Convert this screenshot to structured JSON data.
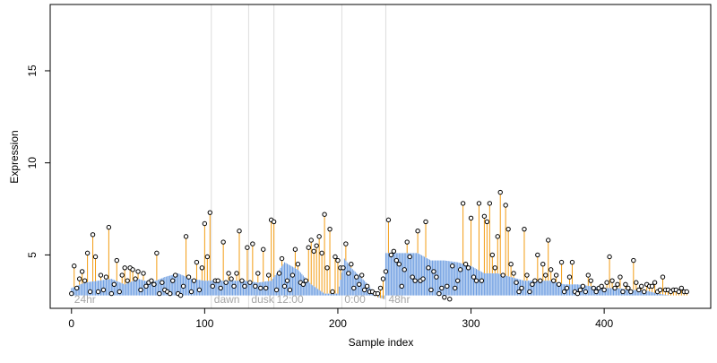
{
  "chart_data": {
    "type": "scatter",
    "title": "",
    "xlabel": "Sample index",
    "ylabel": "Expression",
    "xlim": [
      -16,
      480
    ],
    "ylim": [
      2.1,
      18.6
    ],
    "x_ticks": [
      0,
      100,
      200,
      300,
      400
    ],
    "y_ticks": [
      5,
      10,
      15
    ],
    "grid": false,
    "legend": "none",
    "regions": [
      {
        "label": "24hr",
        "start": 0,
        "end": 105
      },
      {
        "label": "dawn",
        "start": 105,
        "end": 133
      },
      {
        "label": "dusk",
        "start": 133,
        "end": 152
      },
      {
        "label": "12:00",
        "start": 152,
        "end": 203
      },
      {
        "label": "0:00",
        "start": 203,
        "end": 236
      },
      {
        "label": "48hr",
        "start": 236,
        "end": 465
      }
    ],
    "baseline": {
      "name": "",
      "color": "#6a9be0",
      "x": [
        0,
        10,
        20,
        30,
        40,
        50,
        60,
        70,
        80,
        90,
        100,
        110,
        120,
        130,
        140,
        150,
        160,
        170,
        180,
        190,
        200,
        205,
        210,
        220,
        230,
        235,
        236,
        240,
        250,
        260,
        270,
        280,
        290,
        300,
        310,
        320,
        330,
        340,
        350,
        360,
        370,
        380,
        390,
        400,
        410,
        420,
        430,
        440,
        450,
        460
      ],
      "values": [
        3.2,
        3.5,
        3.6,
        3.7,
        3.4,
        3.7,
        3.5,
        3.8,
        4.0,
        3.7,
        3.6,
        3.6,
        3.6,
        3.6,
        3.5,
        3.6,
        4.6,
        4.2,
        3.4,
        2.9,
        2.9,
        4.8,
        4.3,
        3.6,
        2.7,
        2.6,
        5.1,
        5.1,
        5.1,
        5.1,
        4.7,
        4.7,
        4.6,
        4.4,
        4.0,
        4.0,
        3.8,
        3.6,
        3.6,
        3.6,
        3.4,
        3.4,
        3.3,
        3.2,
        3.2,
        3.1,
        3.1,
        2.9,
        2.8,
        2.8
      ]
    },
    "spike_color": "#f39c12",
    "point_style": "open-circle",
    "points_x": [
      0,
      2,
      4,
      6,
      8,
      10,
      12,
      14,
      16,
      18,
      20,
      22,
      24,
      26,
      28,
      30,
      32,
      34,
      36,
      38,
      40,
      42,
      44,
      46,
      48,
      50,
      52,
      54,
      56,
      58,
      60,
      62,
      64,
      66,
      68,
      70,
      72,
      74,
      76,
      78,
      80,
      82,
      84,
      86,
      88,
      90,
      92,
      94,
      96,
      98,
      100,
      102,
      104,
      106,
      108,
      110,
      112,
      114,
      116,
      118,
      120,
      122,
      124,
      126,
      128,
      130,
      132,
      134,
      136,
      138,
      140,
      142,
      144,
      146,
      148,
      150,
      152,
      154,
      156,
      158,
      160,
      162,
      164,
      166,
      168,
      170,
      172,
      174,
      176,
      178,
      180,
      182,
      184,
      186,
      188,
      190,
      192,
      194,
      196,
      198,
      200,
      202,
      204,
      206,
      208,
      210,
      212,
      214,
      216,
      218,
      220,
      222,
      224,
      226,
      228,
      230,
      232,
      234,
      236,
      238,
      240,
      242,
      244,
      246,
      248,
      250,
      252,
      254,
      256,
      258,
      260,
      262,
      264,
      266,
      268,
      270,
      272,
      274,
      276,
      278,
      280,
      282,
      284,
      286,
      288,
      290,
      292,
      294,
      296,
      298,
      300,
      302,
      304,
      306,
      308,
      310,
      312,
      314,
      316,
      318,
      320,
      322,
      324,
      326,
      328,
      330,
      332,
      334,
      336,
      338,
      340,
      342,
      344,
      346,
      348,
      350,
      352,
      354,
      356,
      358,
      360,
      362,
      364,
      366,
      368,
      370,
      372,
      374,
      376,
      378,
      380,
      382,
      384,
      386,
      388,
      390,
      392,
      394,
      396,
      398,
      400,
      402,
      404,
      406,
      408,
      410,
      412,
      414,
      416,
      418,
      420,
      422,
      424,
      426,
      428,
      430,
      432,
      434,
      436,
      438,
      440,
      442,
      444,
      446,
      448,
      450,
      452,
      454,
      456,
      458,
      460,
      462
    ],
    "points_y": [
      2.9,
      4.4,
      3.2,
      3.7,
      4.1,
      3.6,
      5.1,
      3.0,
      6.1,
      4.9,
      3.0,
      3.9,
      3.1,
      3.8,
      6.5,
      2.9,
      3.4,
      4.7,
      3.0,
      3.9,
      4.3,
      3.6,
      4.3,
      4.2,
      3.7,
      4.1,
      3.1,
      4.0,
      3.3,
      3.5,
      3.6,
      3.4,
      5.1,
      2.9,
      3.5,
      3.1,
      3.0,
      2.9,
      3.6,
      3.9,
      2.9,
      2.8,
      3.3,
      6.0,
      3.8,
      3.0,
      3.6,
      4.6,
      3.1,
      4.3,
      6.7,
      4.9,
      7.3,
      3.3,
      3.6,
      3.6,
      3.2,
      5.7,
      3.5,
      4.0,
      3.7,
      3.3,
      4.0,
      6.3,
      3.6,
      3.3,
      5.4,
      3.5,
      5.6,
      3.3,
      4.0,
      3.2,
      5.3,
      3.2,
      3.9,
      6.9,
      6.8,
      3.1,
      4.0,
      4.8,
      3.3,
      3.6,
      3.1,
      3.9,
      5.3,
      4.5,
      3.5,
      3.4,
      3.6,
      5.4,
      5.8,
      5.2,
      5.5,
      6.0,
      5.1,
      7.2,
      4.3,
      6.4,
      3.0,
      4.9,
      4.7,
      4.3,
      4.3,
      5.6,
      4.0,
      4.5,
      3.2,
      3.8,
      3.4,
      3.9,
      3.1,
      3.3,
      3.0,
      3.0,
      2.9,
      2.9,
      3.2,
      3.7,
      4.1,
      6.9,
      5.0,
      5.2,
      4.7,
      4.5,
      3.3,
      4.2,
      5.7,
      4.9,
      3.8,
      3.6,
      6.3,
      3.6,
      3.7,
      6.8,
      4.3,
      3.1,
      4.1,
      3.8,
      2.9,
      3.2,
      2.7,
      3.3,
      2.6,
      4.4,
      3.2,
      3.6,
      4.2,
      7.8,
      4.5,
      4.3,
      7.0,
      3.8,
      3.6,
      7.8,
      3.6,
      7.1,
      6.8,
      7.8,
      5.0,
      4.3,
      6.0,
      8.4,
      3.9,
      7.7,
      6.4,
      4.5,
      4.0,
      3.5,
      3.0,
      3.2,
      6.4,
      3.9,
      3.0,
      3.4,
      3.6,
      5.0,
      3.6,
      4.5,
      3.9,
      5.8,
      4.2,
      3.6,
      3.9,
      3.4,
      4.6,
      3.0,
      3.2,
      3.8,
      4.6,
      3.0,
      2.9,
      3.1,
      3.3,
      3.0,
      3.9,
      3.6,
      3.2,
      3.0,
      3.2,
      3.3,
      3.1,
      3.5,
      4.9,
      3.6,
      3.2,
      3.4,
      3.8,
      3.0,
      3.4,
      3.2,
      3.0,
      4.7,
      3.5,
      3.1,
      3.3,
      3.0,
      3.4,
      3.3,
      3.3,
      3.5,
      3.0,
      3.1,
      3.8,
      3.1,
      3.1,
      3.0,
      3.1,
      3.1,
      3.0,
      3.2,
      3.0,
      3.0,
      2.9,
      2.9
    ]
  }
}
